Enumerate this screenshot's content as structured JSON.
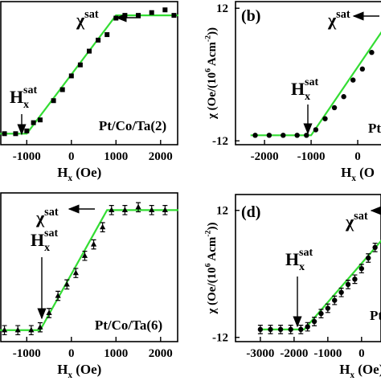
{
  "chart_data": [
    {
      "type": "scatter",
      "sample": "Pt/Co/Ta(2)",
      "marker": "square",
      "xlabel": [
        "H",
        "x",
        " (Oe)"
      ],
      "annotations": [
        [
          "χ",
          "sat"
        ],
        [
          "H",
          "x",
          "sat"
        ]
      ],
      "xlim": [
        -1600,
        2400
      ],
      "ylim": [
        -13,
        13
      ],
      "xticks": [
        -1000,
        0,
        1000,
        2000
      ],
      "x": [
        -1500,
        -1250,
        -1000,
        -850,
        -700,
        -400,
        -200,
        0,
        200,
        400,
        600,
        800,
        1000,
        1200,
        1500,
        1800,
        2100,
        2300
      ],
      "values": [
        -11,
        -11,
        -10.5,
        -9,
        -8.5,
        -5,
        -3,
        -0.5,
        1.5,
        4,
        6,
        7,
        10,
        10.5,
        10.5,
        11,
        11.5,
        10.5
      ],
      "fit": {
        "color": "#33dd33",
        "x": [
          -1600,
          -1000,
          1000,
          2400
        ],
        "values": [
          -11,
          -11,
          10.5,
          10.5
        ]
      }
    },
    {
      "type": "scatter",
      "label": "(b)",
      "sample": "Pt",
      "marker": "circle",
      "xlabel": [
        "H",
        "x",
        " (O"
      ],
      "ylabel": [
        "χ (Oe/(10",
        "6",
        " Acm",
        "-2",
        "))"
      ],
      "annotations": [
        [
          "χ",
          "sat"
        ],
        [
          "H",
          "x",
          "sat"
        ]
      ],
      "xlim": [
        -2640,
        1000
      ],
      "ylim": [
        -12.7,
        13.2
      ],
      "xticks": [
        -2000,
        -1000,
        0
      ],
      "yticks": [
        -12,
        12
      ],
      "x": [
        -2200,
        -1900,
        -1600,
        -1300,
        -1100,
        -900,
        -700,
        -500,
        -300,
        -100,
        100,
        300
      ],
      "values": [
        -11,
        -11,
        -11,
        -11,
        -11,
        -10,
        -8,
        -6,
        -4,
        -1,
        1,
        4
      ],
      "fit": {
        "color": "#33dd33",
        "x": [
          -2300,
          -1000,
          900
        ],
        "values": [
          -11,
          -11,
          12.5
        ]
      }
    },
    {
      "type": "scatter",
      "sample": "Pt/Co/Ta(6)",
      "marker": "triangle",
      "xlabel": [
        "H",
        "x",
        " (Oe)"
      ],
      "annotations": [
        [
          "χ",
          "sat"
        ],
        [
          "H",
          "x",
          "sat"
        ]
      ],
      "xlim": [
        -1600,
        2400
      ],
      "ylim": [
        -13,
        13
      ],
      "xticks": [
        -1000,
        0,
        1000,
        2000
      ],
      "x": [
        -1500,
        -1200,
        -900,
        -700,
        -500,
        -300,
        -100,
        100,
        300,
        500,
        700,
        900,
        1200,
        1500,
        1800,
        2100
      ],
      "values": [
        -11,
        -11,
        -11,
        -10.5,
        -8,
        -5,
        -3,
        -1,
        2,
        4,
        7,
        10,
        10,
        10.5,
        10,
        10
      ],
      "errors": [
        0.8,
        0.8,
        0.8,
        0.8,
        0.8,
        0.8,
        0.8,
        0.8,
        0.8,
        0.8,
        0.8,
        0.8,
        0.8,
        0.8,
        0.8,
        0.8
      ],
      "fit": {
        "color": "#33dd33",
        "x": [
          -1600,
          -700,
          800,
          2400
        ],
        "values": [
          -11,
          -11,
          10,
          10
        ]
      }
    },
    {
      "type": "scatter",
      "label": "(d)",
      "sample": "Pt",
      "marker": "circle",
      "xlabel": [
        "H",
        "x",
        " (Oe)"
      ],
      "ylabel": [
        "χ (Oe/(10",
        "6",
        " Acm",
        "-2",
        "))"
      ],
      "annotations": [
        [
          "χ",
          "sat"
        ],
        [
          "H",
          "x",
          "sat"
        ]
      ],
      "xlim": [
        -3760,
        600
      ],
      "ylim": [
        -12.8,
        15
      ],
      "xticks": [
        -3000,
        -2000,
        -1000,
        0
      ],
      "yticks": [
        -12,
        12
      ],
      "x": [
        -3000,
        -2700,
        -2400,
        -2100,
        -1800,
        -1600,
        -1400,
        -1200,
        -1000,
        -800,
        -600,
        -400,
        -200,
        0,
        200,
        400
      ],
      "values": [
        -10.5,
        -10.5,
        -10.5,
        -10.5,
        -10.5,
        -10,
        -9,
        -7.5,
        -6.5,
        -5,
        -3.5,
        -2,
        -1,
        1,
        3,
        5
      ],
      "errors": [
        0.8,
        0.8,
        0.8,
        0.8,
        0.8,
        0.8,
        0.8,
        0.8,
        0.8,
        0.8,
        0.8,
        0.8,
        0.8,
        0.8,
        0.8,
        0.8
      ],
      "fit": {
        "color": "#33dd33",
        "x": [
          -3000,
          -1700,
          600
        ],
        "values": [
          -10.5,
          -10.5,
          6.4
        ]
      }
    }
  ]
}
